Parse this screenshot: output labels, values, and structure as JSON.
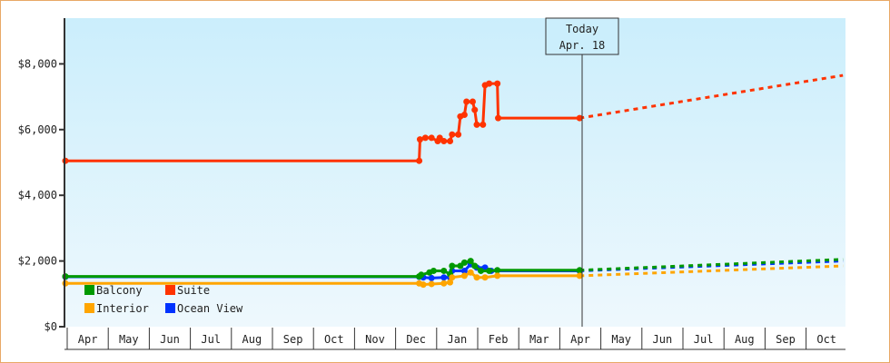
{
  "chart_data": {
    "type": "line",
    "title": "",
    "xlabel": "",
    "ylabel": "",
    "ylim": [
      0,
      9400
    ],
    "y_ticks": [
      "$0",
      "$2,000",
      "$4,000",
      "$6,000",
      "$8,000"
    ],
    "y_tick_values": [
      0,
      2000,
      4000,
      6000,
      8000
    ],
    "x_ticks": [
      "Apr",
      "May",
      "Jun",
      "Jul",
      "Aug",
      "Sep",
      "Oct",
      "Nov",
      "Dec",
      "Jan",
      "Feb",
      "Mar",
      "Apr",
      "May",
      "Jun",
      "Jul",
      "Aug",
      "Sep",
      "Oct"
    ],
    "today_marker": {
      "line1": "Today",
      "line2": "Apr. 18",
      "x_index": 12.5
    },
    "legend": [
      {
        "name": "Balcony",
        "color": "#009900"
      },
      {
        "name": "Suite",
        "color": "#ff3300"
      },
      {
        "name": "Interior",
        "color": "#ffa500"
      },
      {
        "name": "Ocean View",
        "color": "#0033ff"
      }
    ],
    "grid": false,
    "legend_position": "inside-bottom-left",
    "series": [
      {
        "name": "Suite",
        "color": "#ff3300",
        "points": [
          [
            0,
            5050
          ],
          [
            8.6,
            5050
          ],
          [
            8.62,
            5700
          ],
          [
            8.75,
            5750
          ],
          [
            8.9,
            5750
          ],
          [
            9.05,
            5650
          ],
          [
            9.1,
            5750
          ],
          [
            9.2,
            5650
          ],
          [
            9.35,
            5650
          ],
          [
            9.4,
            5850
          ],
          [
            9.55,
            5850
          ],
          [
            9.6,
            6400
          ],
          [
            9.7,
            6450
          ],
          [
            9.75,
            6850
          ],
          [
            9.9,
            6850
          ],
          [
            9.95,
            6600
          ],
          [
            10.0,
            6150
          ],
          [
            10.15,
            6150
          ],
          [
            10.2,
            7350
          ],
          [
            10.3,
            7400
          ],
          [
            10.5,
            7400
          ],
          [
            10.52,
            6350
          ],
          [
            12.5,
            6350
          ]
        ],
        "forecast": [
          [
            12.5,
            6350
          ],
          [
            18.9,
            7650
          ]
        ]
      },
      {
        "name": "Ocean View",
        "color": "#0033ff",
        "points": [
          [
            0,
            1520
          ],
          [
            8.6,
            1520
          ],
          [
            8.7,
            1500
          ],
          [
            8.9,
            1480
          ],
          [
            9.2,
            1500
          ],
          [
            9.35,
            1500
          ],
          [
            9.4,
            1700
          ],
          [
            9.7,
            1700
          ],
          [
            9.85,
            1900
          ],
          [
            10.0,
            1800
          ],
          [
            10.2,
            1800
          ],
          [
            10.35,
            1700
          ],
          [
            12.5,
            1700
          ]
        ],
        "forecast": [
          [
            12.5,
            1700
          ],
          [
            18.9,
            2000
          ]
        ]
      },
      {
        "name": "Balcony",
        "color": "#009900",
        "points": [
          [
            0,
            1530
          ],
          [
            8.6,
            1530
          ],
          [
            8.65,
            1580
          ],
          [
            8.85,
            1650
          ],
          [
            8.95,
            1700
          ],
          [
            9.2,
            1700
          ],
          [
            9.35,
            1600
          ],
          [
            9.4,
            1850
          ],
          [
            9.6,
            1850
          ],
          [
            9.7,
            1950
          ],
          [
            9.85,
            2000
          ],
          [
            9.95,
            1850
          ],
          [
            10.1,
            1700
          ],
          [
            10.3,
            1700
          ],
          [
            10.5,
            1720
          ],
          [
            12.5,
            1720
          ]
        ],
        "forecast": [
          [
            12.5,
            1720
          ],
          [
            18.9,
            2050
          ]
        ]
      },
      {
        "name": "Interior",
        "color": "#ffa500",
        "points": [
          [
            0,
            1320
          ],
          [
            8.6,
            1320
          ],
          [
            8.7,
            1280
          ],
          [
            8.9,
            1300
          ],
          [
            9.2,
            1320
          ],
          [
            9.35,
            1350
          ],
          [
            9.4,
            1500
          ],
          [
            9.7,
            1550
          ],
          [
            9.85,
            1650
          ],
          [
            10.0,
            1500
          ],
          [
            10.2,
            1500
          ],
          [
            10.5,
            1550
          ],
          [
            12.5,
            1550
          ]
        ],
        "forecast": [
          [
            12.5,
            1550
          ],
          [
            18.9,
            1850
          ]
        ]
      }
    ]
  }
}
